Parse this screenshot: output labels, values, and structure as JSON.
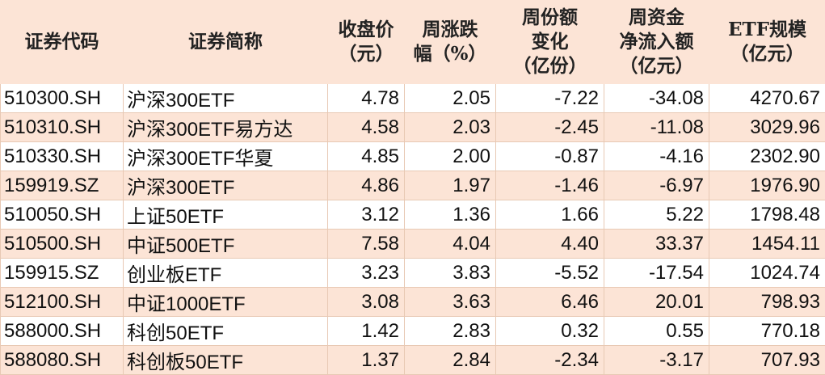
{
  "headers": [
    "证券代码",
    "证券简称",
    "收盘价\n（元）",
    "周涨跌\n幅（%）",
    "周份额\n变化\n（亿份）",
    "周资金\n净流入额\n（亿元）",
    "ETF规模\n（亿元）"
  ],
  "header_bg": "#FCE4D6",
  "rows": [
    [
      "510300.SH",
      "沪深300ETF",
      "4.78",
      "2.05",
      "-7.22",
      "-34.08",
      "4270.67"
    ],
    [
      "510310.SH",
      "沪深300ETF易方达",
      "4.58",
      "2.03",
      "-2.45",
      "-11.08",
      "3029.96"
    ],
    [
      "510330.SH",
      "沪深300ETF华夏",
      "4.85",
      "2.00",
      "-0.87",
      "-4.16",
      "2302.90"
    ],
    [
      "159919.SZ",
      "沪深300ETF",
      "4.86",
      "1.97",
      "-1.46",
      "-6.97",
      "1976.90"
    ],
    [
      "510050.SH",
      "上证50ETF",
      "3.12",
      "1.36",
      "1.66",
      "5.22",
      "1798.48"
    ],
    [
      "510500.SH",
      "中证500ETF",
      "7.58",
      "4.04",
      "4.40",
      "33.37",
      "1454.11"
    ],
    [
      "159915.SZ",
      "创业板ETF",
      "3.23",
      "3.83",
      "-5.52",
      "-17.54",
      "1024.74"
    ],
    [
      "512100.SH",
      "中证1000ETF",
      "3.08",
      "3.63",
      "6.46",
      "20.01",
      "798.93"
    ],
    [
      "588000.SH",
      "科创50ETF",
      "1.42",
      "2.83",
      "0.32",
      "0.55",
      "770.18"
    ],
    [
      "588080.SH",
      "科创板50ETF",
      "1.37",
      "2.84",
      "-2.34",
      "-3.17",
      "707.93"
    ]
  ]
}
